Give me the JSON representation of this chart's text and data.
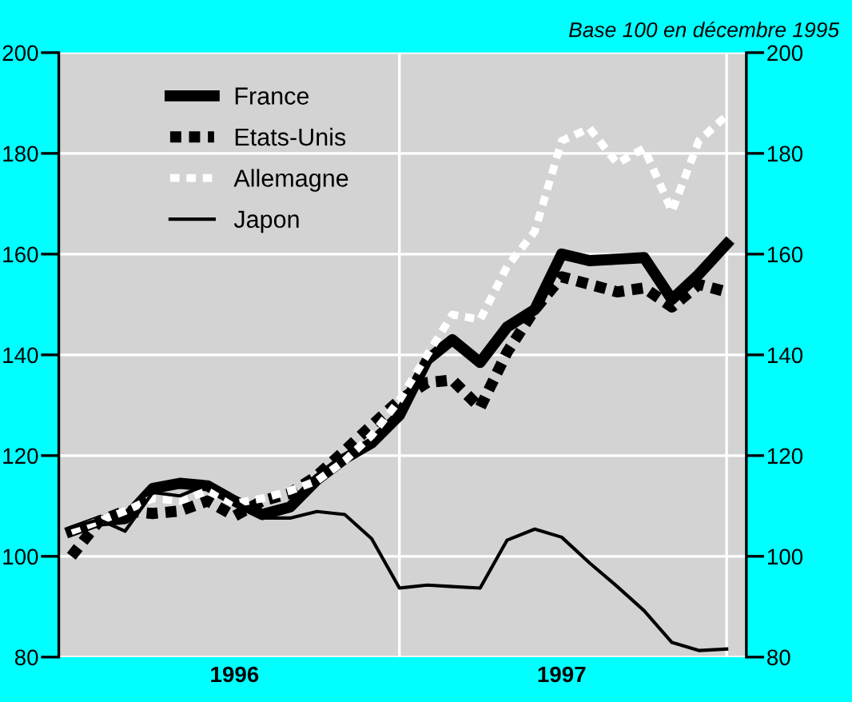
{
  "chart_data": {
    "type": "line",
    "subtitle": "Base 100 en décembre 1995",
    "x": [
      "1996-01",
      "1996-02",
      "1996-03",
      "1996-04",
      "1996-05",
      "1996-06",
      "1996-07",
      "1996-08",
      "1996-09",
      "1996-10",
      "1996-11",
      "1996-12",
      "1997-01",
      "1997-02",
      "1997-03",
      "1997-04",
      "1997-05",
      "1997-06",
      "1997-07",
      "1997-08",
      "1997-09",
      "1997-10",
      "1997-11",
      "1997-12",
      "1998-01"
    ],
    "xlim": [
      "1995-12-18",
      "1998-01-23"
    ],
    "xticks": [
      {
        "value": "1996-07-01",
        "label": "1996"
      },
      {
        "value": "1997-07-01",
        "label": "1997"
      }
    ],
    "ylim": [
      80,
      200
    ],
    "yticks": [
      80,
      100,
      120,
      140,
      160,
      180,
      200
    ],
    "y2lim": [
      80,
      200
    ],
    "y2ticks": [
      80,
      100,
      120,
      140,
      160,
      180,
      200
    ],
    "grid": "y",
    "legend": "top left",
    "ref_lines": [
      {
        "axis": "x",
        "value": "1997-01-01",
        "color": "#ffffff"
      },
      {
        "axis": "x",
        "value": "1998-01-01",
        "color": "#ffffff"
      }
    ],
    "series": [
      {
        "name": "France",
        "color": "#000000",
        "line_style": "solid",
        "values": [
          105,
          107,
          107.5,
          113.5,
          114.5,
          114,
          111,
          108.3,
          109.8,
          115.2,
          119.4,
          122.5,
          128,
          139,
          143,
          138.5,
          145.5,
          149,
          160,
          158.7,
          159,
          159.3,
          151,
          156,
          162
        ]
      },
      {
        "name": "Etats-Unis",
        "color": "#000000",
        "line_style": "dashed",
        "values": [
          100,
          107,
          109,
          108.5,
          109,
          111,
          108,
          111,
          112.5,
          116,
          121,
          126,
          131,
          134.5,
          135,
          129.5,
          140.5,
          149,
          155.5,
          154,
          152.5,
          153.3,
          149.5,
          154,
          152.5
        ]
      },
      {
        "name": "Allemagne",
        "color": "#ffffff",
        "line_style": "dotted",
        "values": [
          105,
          107,
          109,
          111.5,
          111,
          113,
          110.5,
          111.5,
          113,
          115,
          119,
          124,
          131,
          140,
          148,
          147,
          157.5,
          164.5,
          182.5,
          185,
          178,
          181,
          168.5,
          182.5,
          187.5
        ]
      },
      {
        "name": "Japon",
        "color": "#000000",
        "line_style": "solid",
        "values": [
          105.7,
          107.3,
          105,
          112.7,
          112,
          114.3,
          111,
          107.6,
          107.6,
          108.9,
          108.3,
          103.5,
          93.7,
          94.3,
          94,
          93.7,
          103.2,
          105.4,
          103.8,
          98.7,
          94,
          89.2,
          82.9,
          81.3,
          81.6
        ]
      }
    ]
  }
}
